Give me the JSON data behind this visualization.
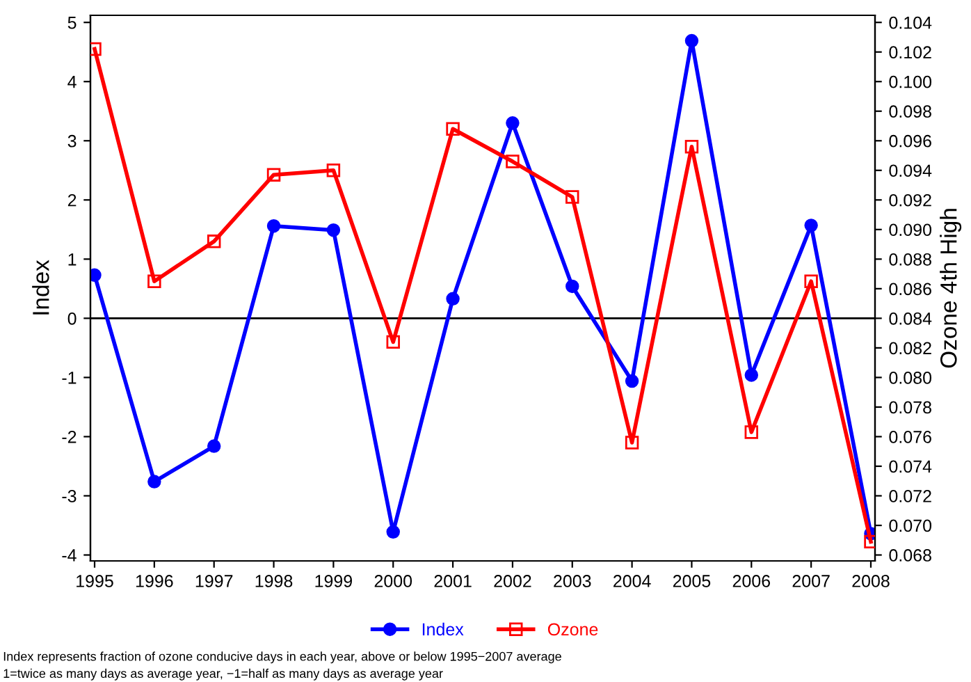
{
  "chart_data": {
    "type": "line",
    "ylabel": "Index",
    "y2label": "Ozone 4th High",
    "x": [
      1995,
      1996,
      1997,
      1998,
      1999,
      2000,
      2001,
      2002,
      2003,
      2004,
      2005,
      2006,
      2007,
      2008
    ],
    "series": [
      {
        "name": "Index",
        "color": "#0000ff",
        "marker": "circle",
        "values": [
          0.73,
          -2.76,
          -2.16,
          1.56,
          1.49,
          -3.61,
          0.33,
          3.3,
          0.54,
          -1.06,
          4.69,
          -0.96,
          1.57,
          -3.64
        ]
      },
      {
        "name": "Ozone",
        "color": "#ff0000",
        "marker": "square",
        "axis": "y2",
        "values": [
          0.1022,
          0.0865,
          0.0892,
          0.0937,
          0.094,
          0.0824,
          0.0968,
          0.0946,
          0.0922,
          0.0756,
          0.0956,
          0.0763,
          0.0865,
          0.0689
        ]
      }
    ],
    "xlim": [
      1994.93,
      2008.07
    ],
    "xticks": [
      1995,
      1996,
      1997,
      1998,
      1999,
      2000,
      2001,
      2002,
      2003,
      2004,
      2005,
      2006,
      2007,
      2008
    ],
    "ylim": [
      -4.1,
      5.12
    ],
    "yticks": [
      -4,
      -3,
      -2,
      -1,
      0,
      1,
      2,
      3,
      4,
      5
    ],
    "y2lim": [
      0.0676,
      0.10448
    ],
    "y2ticks": [
      {
        "value": 0.068,
        "label": "0.068"
      },
      {
        "value": 0.07,
        "label": "0.070"
      },
      {
        "value": 0.072,
        "label": "0.072"
      },
      {
        "value": 0.074,
        "label": "0.074"
      },
      {
        "value": 0.076,
        "label": "0.076"
      },
      {
        "value": 0.078,
        "label": "0.078"
      },
      {
        "value": 0.08,
        "label": "0.080"
      },
      {
        "value": 0.082,
        "label": "0.082"
      },
      {
        "value": 0.084,
        "label": "0.084"
      },
      {
        "value": 0.086,
        "label": "0.086"
      },
      {
        "value": 0.088,
        "label": "0.088"
      },
      {
        "value": 0.09,
        "label": "0.090"
      },
      {
        "value": 0.092,
        "label": "0.092"
      },
      {
        "value": 0.094,
        "label": "0.094"
      },
      {
        "value": 0.096,
        "label": "0.096"
      },
      {
        "value": 0.098,
        "label": "0.098"
      },
      {
        "value": 0.1,
        "label": "0.100"
      },
      {
        "value": 0.102,
        "label": "0.102"
      },
      {
        "value": 0.104,
        "label": "0.104"
      }
    ],
    "ref_lines": [
      {
        "axis": "y",
        "value": 0,
        "color": "#000000"
      }
    ],
    "grid": false,
    "legend": "bottom",
    "line_style": "solid",
    "annotations": [
      "Index represents fraction of ozone conducive days in each year, above or below 1995−2007 average",
      "1=twice as many days as average year, −1=half as many days as average year"
    ]
  }
}
